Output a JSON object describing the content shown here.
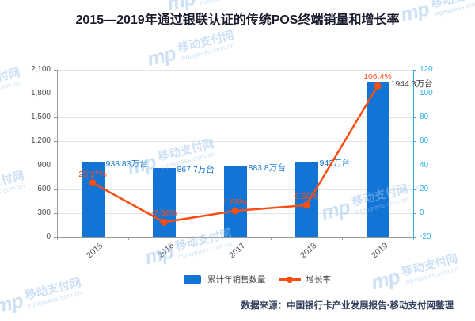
{
  "title": "2015—2019年通过银联认证的传统POS终端销量和增长率",
  "source": "数据来源：中国银行卡产业发展报告·移动支付网整理",
  "watermark": {
    "logo": "mp",
    "brand": "移动支付网",
    "url": "mpaypass.com.cn"
  },
  "legend": {
    "bar_label": "累计年销售数量",
    "line_label": "增长率"
  },
  "colors": {
    "bar": "#1274d4",
    "line": "#fa4e12",
    "right_axis": "#29b1e6",
    "left_axis_text": "#4d4d4d",
    "title": "#1b1b2f",
    "grid": "#e4e4e8",
    "watermark": "#9cc4ec"
  },
  "chart_data": {
    "type": "bar+line combo",
    "title": "2015—2019年通过银联认证的传统POS终端销量和增长率",
    "categories": [
      "2015",
      "2016",
      "2017",
      "2018",
      "2019"
    ],
    "series": [
      {
        "name": "累计年销售数量",
        "type": "bar",
        "axis": "left",
        "unit": "万台",
        "values": [
          938.83,
          867.7,
          883.8,
          942,
          1944.3
        ],
        "labels": [
          "938.83万台",
          "867.7万台",
          "883.8万台",
          "942万台",
          "1944.3万台"
        ],
        "color": "#1274d4",
        "label_colors": [
          "#1274d4",
          "#1274d4",
          "#1274d4",
          "#1274d4",
          "#3a3a3a"
        ]
      },
      {
        "name": "增长率",
        "type": "line",
        "axis": "right",
        "unit": "%",
        "values": [
          25.37,
          -7.58,
          1.86,
          6.58,
          106.4
        ],
        "labels": [
          "25.37%",
          "-7.58%",
          "1.86%",
          "6.58%",
          "106.4%"
        ],
        "color": "#fa4e12"
      }
    ],
    "left_axis": {
      "min": 0,
      "max": 2100,
      "step": 300,
      "ticks": [
        "0",
        "300",
        "600",
        "900",
        "1,200",
        "1,500",
        "1,800",
        "2,100"
      ]
    },
    "right_axis": {
      "min": -20,
      "max": 120,
      "step": 20,
      "ticks": [
        "-20",
        "0",
        "20",
        "40",
        "60",
        "80",
        "100",
        "120"
      ]
    },
    "grid": true,
    "legend_position": "bottom"
  }
}
